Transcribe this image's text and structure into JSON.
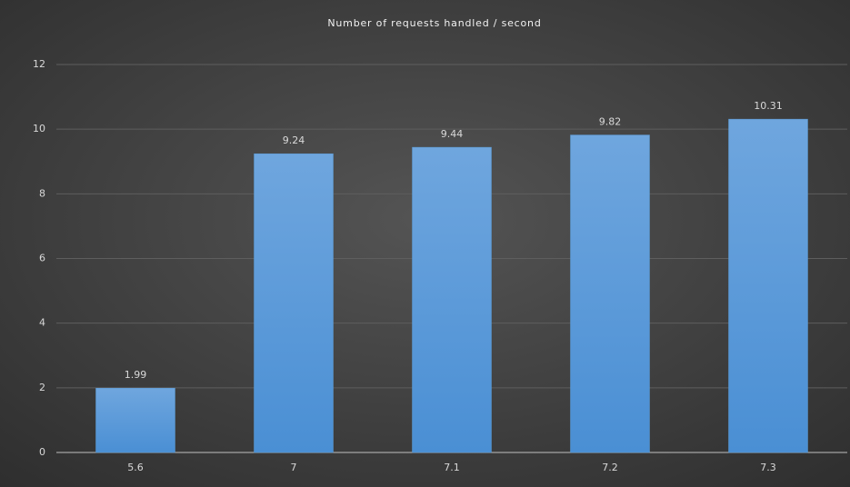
{
  "chart_data": {
    "type": "bar",
    "title": "Number of requests handled / second",
    "categories": [
      "5.6",
      "7",
      "7.1",
      "7.2",
      "7.3"
    ],
    "values": [
      1.99,
      9.24,
      9.44,
      9.82,
      10.31
    ],
    "color": "#5b9bd5",
    "ylim": [
      0,
      12
    ],
    "yticks": [
      0,
      2,
      4,
      6,
      8,
      10,
      12
    ],
    "grid": true
  }
}
